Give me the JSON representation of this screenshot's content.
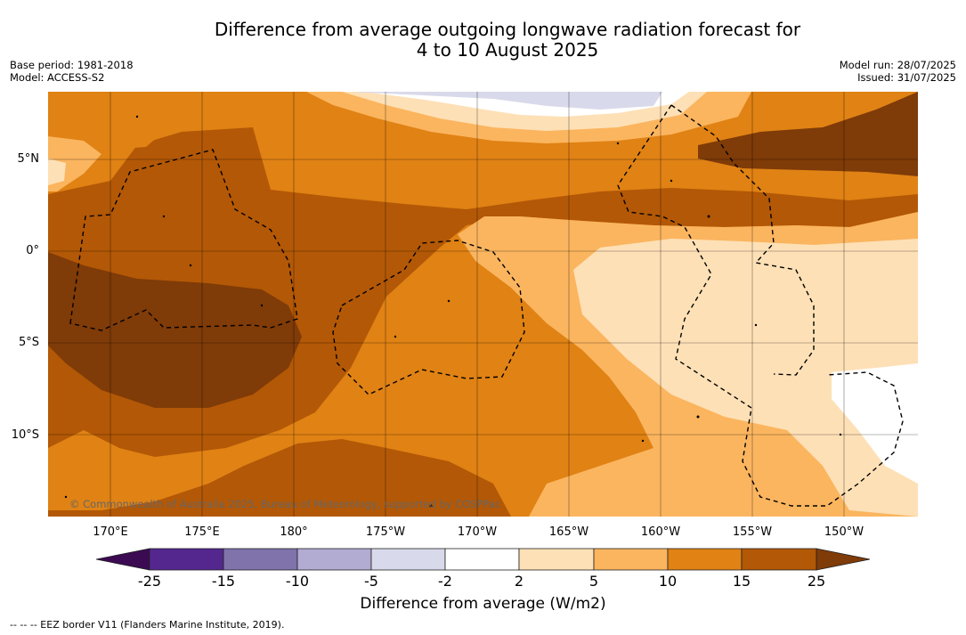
{
  "title": {
    "line1": "Difference from average outgoing longwave radiation forecast for",
    "line2": "4 to 10 August 2025"
  },
  "meta_left": {
    "line1": "Base period: 1981-2018",
    "line2": "Model: ACCESS-S2"
  },
  "meta_right": {
    "line1": "Model run: 28/07/2025",
    "line2": "Issued: 31/07/2025"
  },
  "lat_labels": [
    "5°N",
    "0°",
    "5°S",
    "10°S"
  ],
  "lon_labels": [
    "170°E",
    "175°E",
    "180°",
    "175°W",
    "170°W",
    "165°W",
    "160°W",
    "155°W",
    "150°W"
  ],
  "copyright": "© Commonwealth of Australia 2025, Bureau of Meteorology, supported by COSPPac",
  "colorbar": {
    "label": "Difference from average (W/m2)",
    "ticks": [
      "-25",
      "-15",
      "-10",
      "-5",
      "-2",
      "2",
      "5",
      "10",
      "15",
      "25"
    ],
    "colors": {
      "below_min": "#3b0a52",
      "n25_n15": "#54278f",
      "n15_n10": "#8073ac",
      "n10_n5": "#b2abd2",
      "n5_n2": "#d8daeb",
      "n2_2": "#ffffff",
      "p2_5": "#fee0b6",
      "p5_10": "#fbb55f",
      "p10_15": "#e08214",
      "p15_25": "#b35806",
      "above_max": "#7f3b08"
    }
  },
  "legend": "--  --  -- EEZ border V11 (Flanders Marine Institute, 2019)."
}
